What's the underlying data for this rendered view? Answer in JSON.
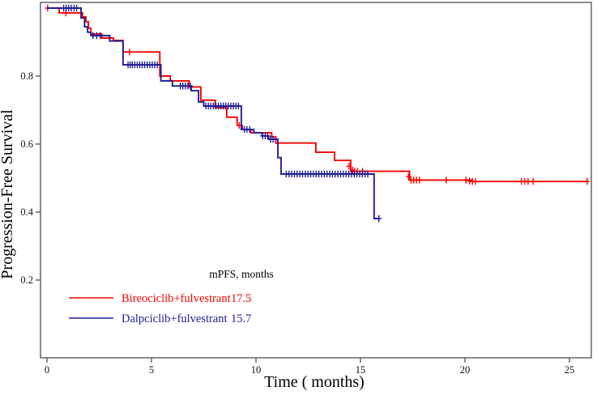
{
  "figure": {
    "x_axis_title": "Time ( months)",
    "y_axis_title": "Progression-Free Survival"
  },
  "chart_data": {
    "type": "line",
    "subtype": "kaplan-meier-step",
    "title": "",
    "xlabel": "Time ( months)",
    "ylabel": "Progression-Free Survival",
    "xlim": [
      0,
      26.1
    ],
    "ylim": [
      0,
      1.0
    ],
    "grid": false,
    "x_ticks": [
      {
        "v": 0,
        "label": "0"
      },
      {
        "v": 5,
        "label": "5"
      },
      {
        "v": 10,
        "label": "10"
      },
      {
        "v": 15,
        "label": "15"
      },
      {
        "v": 20,
        "label": "20"
      },
      {
        "v": 25,
        "label": "25"
      }
    ],
    "y_ticks": [
      {
        "v": 0.2,
        "label": "0.2"
      },
      {
        "v": 0.4,
        "label": "0.4"
      },
      {
        "v": 0.6,
        "label": "0.6"
      },
      {
        "v": 0.8,
        "label": "0.8"
      }
    ],
    "legend": {
      "position": "inside-bottom-left",
      "header": "mPFS, months"
    },
    "series": [
      {
        "name": "Bireociclib+fulvestrant",
        "median_pfs": "17.5",
        "color": "#F80400",
        "steps": [
          [
            0,
            1.0
          ],
          [
            0.58,
            0.986
          ],
          [
            1.7,
            0.974
          ],
          [
            1.86,
            0.96
          ],
          [
            1.98,
            0.941
          ],
          [
            2.1,
            0.924
          ],
          [
            2.62,
            0.912
          ],
          [
            3.18,
            0.905
          ],
          [
            3.64,
            0.871
          ],
          [
            5.4,
            0.8
          ],
          [
            5.9,
            0.786
          ],
          [
            6.8,
            0.768
          ],
          [
            7.36,
            0.729
          ],
          [
            8.05,
            0.707
          ],
          [
            8.6,
            0.679
          ],
          [
            9.1,
            0.655
          ],
          [
            9.35,
            0.643
          ],
          [
            9.75,
            0.633
          ],
          [
            10.75,
            0.621
          ],
          [
            10.95,
            0.603
          ],
          [
            12.87,
            0.576
          ],
          [
            13.76,
            0.552
          ],
          [
            14.53,
            0.52
          ],
          [
            17.35,
            0.494
          ],
          [
            20.3,
            0.49
          ],
          [
            25.88,
            0.49
          ]
        ],
        "censors": [
          [
            0.03,
            1.0
          ],
          [
            0.9,
            0.986
          ],
          [
            3.95,
            0.871
          ],
          [
            9.2,
            0.655
          ],
          [
            14.45,
            0.535
          ],
          [
            14.62,
            0.524
          ],
          [
            14.72,
            0.52
          ],
          [
            14.85,
            0.52
          ],
          [
            15.1,
            0.52
          ],
          [
            17.3,
            0.505
          ],
          [
            17.42,
            0.494
          ],
          [
            17.55,
            0.494
          ],
          [
            17.68,
            0.494
          ],
          [
            17.82,
            0.494
          ],
          [
            19.1,
            0.494
          ],
          [
            20.05,
            0.494
          ],
          [
            20.22,
            0.491
          ],
          [
            20.36,
            0.49
          ],
          [
            20.5,
            0.49
          ],
          [
            22.7,
            0.49
          ],
          [
            22.86,
            0.49
          ],
          [
            23.02,
            0.49
          ],
          [
            23.26,
            0.49
          ],
          [
            25.85,
            0.49
          ]
        ]
      },
      {
        "name": "Dalpciclib+fulvestrant",
        "median_pfs": "15.7",
        "color": "#1E1E96",
        "steps": [
          [
            0,
            1.0
          ],
          [
            1.63,
            0.971
          ],
          [
            1.8,
            0.945
          ],
          [
            1.94,
            0.929
          ],
          [
            2.1,
            0.919
          ],
          [
            3.0,
            0.903
          ],
          [
            3.64,
            0.833
          ],
          [
            5.45,
            0.786
          ],
          [
            6.0,
            0.771
          ],
          [
            6.9,
            0.757
          ],
          [
            7.25,
            0.724
          ],
          [
            7.5,
            0.712
          ],
          [
            9.3,
            0.643
          ],
          [
            9.9,
            0.633
          ],
          [
            10.3,
            0.624
          ],
          [
            10.6,
            0.614
          ],
          [
            11.05,
            0.56
          ],
          [
            11.2,
            0.512
          ],
          [
            15.65,
            0.381
          ],
          [
            15.92,
            0.381
          ]
        ],
        "censors": [
          [
            0.8,
            1.0
          ],
          [
            0.92,
            1.0
          ],
          [
            1.04,
            1.0
          ],
          [
            1.16,
            1.0
          ],
          [
            1.3,
            1.0
          ],
          [
            1.42,
            1.0
          ],
          [
            2.2,
            0.919
          ],
          [
            2.38,
            0.919
          ],
          [
            2.55,
            0.919
          ],
          [
            3.88,
            0.833
          ],
          [
            3.98,
            0.833
          ],
          [
            4.08,
            0.833
          ],
          [
            4.2,
            0.833
          ],
          [
            4.32,
            0.833
          ],
          [
            4.44,
            0.833
          ],
          [
            4.56,
            0.833
          ],
          [
            4.68,
            0.833
          ],
          [
            4.8,
            0.833
          ],
          [
            4.92,
            0.833
          ],
          [
            5.04,
            0.833
          ],
          [
            5.16,
            0.833
          ],
          [
            5.28,
            0.833
          ],
          [
            6.38,
            0.771
          ],
          [
            6.5,
            0.771
          ],
          [
            6.62,
            0.771
          ],
          [
            6.74,
            0.771
          ],
          [
            6.86,
            0.771
          ],
          [
            7.6,
            0.712
          ],
          [
            7.72,
            0.712
          ],
          [
            7.84,
            0.712
          ],
          [
            7.96,
            0.712
          ],
          [
            8.08,
            0.712
          ],
          [
            8.2,
            0.712
          ],
          [
            8.32,
            0.712
          ],
          [
            8.44,
            0.712
          ],
          [
            8.56,
            0.712
          ],
          [
            8.68,
            0.712
          ],
          [
            8.8,
            0.712
          ],
          [
            8.92,
            0.712
          ],
          [
            9.04,
            0.712
          ],
          [
            9.16,
            0.712
          ],
          [
            9.45,
            0.643
          ],
          [
            9.57,
            0.643
          ],
          [
            9.7,
            0.643
          ],
          [
            10.32,
            0.624
          ],
          [
            10.44,
            0.624
          ],
          [
            10.56,
            0.624
          ],
          [
            10.7,
            0.614
          ],
          [
            10.82,
            0.614
          ],
          [
            11.45,
            0.512
          ],
          [
            11.58,
            0.512
          ],
          [
            11.71,
            0.512
          ],
          [
            11.84,
            0.512
          ],
          [
            11.97,
            0.512
          ],
          [
            12.1,
            0.512
          ],
          [
            12.23,
            0.512
          ],
          [
            12.36,
            0.512
          ],
          [
            12.49,
            0.512
          ],
          [
            12.62,
            0.512
          ],
          [
            12.75,
            0.512
          ],
          [
            12.88,
            0.512
          ],
          [
            13.01,
            0.512
          ],
          [
            13.14,
            0.512
          ],
          [
            13.27,
            0.512
          ],
          [
            13.4,
            0.512
          ],
          [
            13.53,
            0.512
          ],
          [
            13.66,
            0.512
          ],
          [
            13.79,
            0.512
          ],
          [
            13.92,
            0.512
          ],
          [
            14.05,
            0.512
          ],
          [
            14.18,
            0.512
          ],
          [
            14.31,
            0.512
          ],
          [
            14.44,
            0.512
          ],
          [
            14.57,
            0.512
          ],
          [
            14.7,
            0.512
          ],
          [
            14.83,
            0.512
          ],
          [
            14.96,
            0.512
          ],
          [
            15.09,
            0.512
          ],
          [
            15.22,
            0.512
          ],
          [
            15.35,
            0.512
          ],
          [
            15.88,
            0.381
          ]
        ]
      }
    ]
  }
}
